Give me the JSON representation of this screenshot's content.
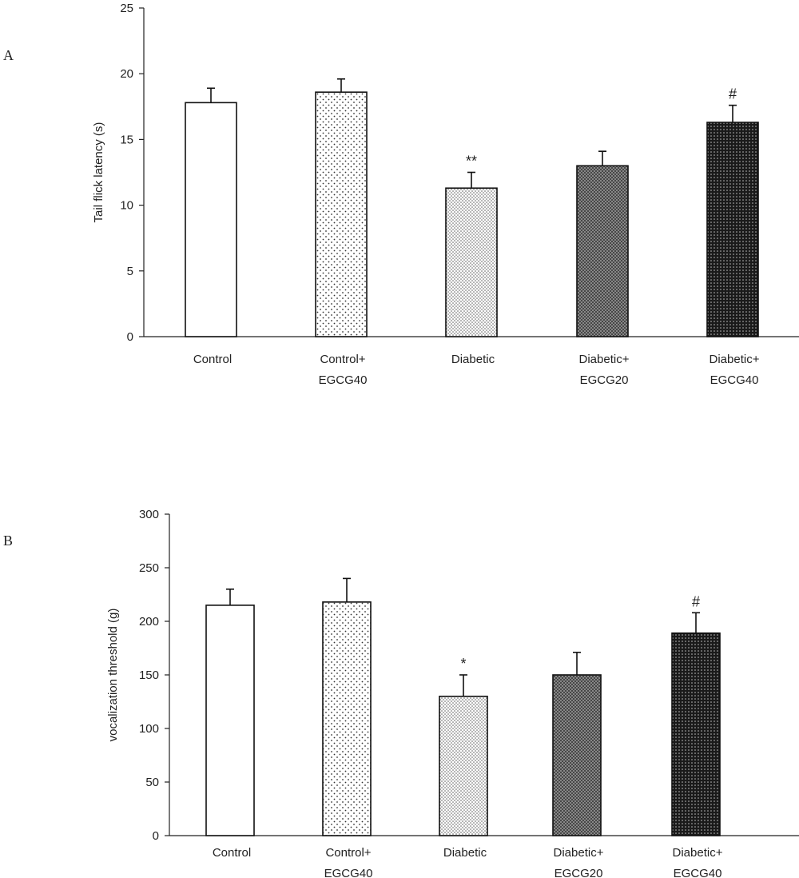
{
  "chart_data": [
    {
      "type": "bar",
      "panel_label": "A",
      "ylabel": "Tail flick latency (s)",
      "ylim": [
        0,
        25
      ],
      "yticks": [
        0,
        5,
        10,
        15,
        20,
        25
      ],
      "categories": [
        [
          "Control"
        ],
        [
          "Control+",
          "EGCG40"
        ],
        [
          "Diabetic"
        ],
        [
          "Diabetic+",
          "EGCG20"
        ],
        [
          "Diabetic+",
          "EGCG40"
        ]
      ],
      "values": [
        17.8,
        18.6,
        11.3,
        13.0,
        16.3
      ],
      "errors": [
        1.1,
        1.0,
        1.2,
        1.1,
        1.3
      ],
      "annotations": [
        "",
        "",
        "**",
        "",
        "#"
      ],
      "fills": [
        "white",
        "dots-sparse",
        "dots-medium",
        "crosshatch-gray",
        "crosshatch-dark"
      ]
    },
    {
      "type": "bar",
      "panel_label": "B",
      "ylabel": "vocalization threshold (g)",
      "ylim": [
        0,
        300
      ],
      "yticks": [
        0,
        50,
        100,
        150,
        200,
        250,
        300
      ],
      "categories": [
        [
          "Control"
        ],
        [
          "Control+",
          "EGCG40"
        ],
        [
          "Diabetic"
        ],
        [
          "Diabetic+",
          "EGCG20"
        ],
        [
          "Diabetic+",
          "EGCG40"
        ]
      ],
      "values": [
        215,
        218,
        130,
        150,
        189
      ],
      "errors": [
        15,
        22,
        20,
        21,
        19
      ],
      "annotations": [
        "",
        "",
        "*",
        "",
        "#"
      ],
      "fills": [
        "white",
        "dots-sparse",
        "dots-medium",
        "crosshatch-gray",
        "crosshatch-dark"
      ]
    }
  ]
}
